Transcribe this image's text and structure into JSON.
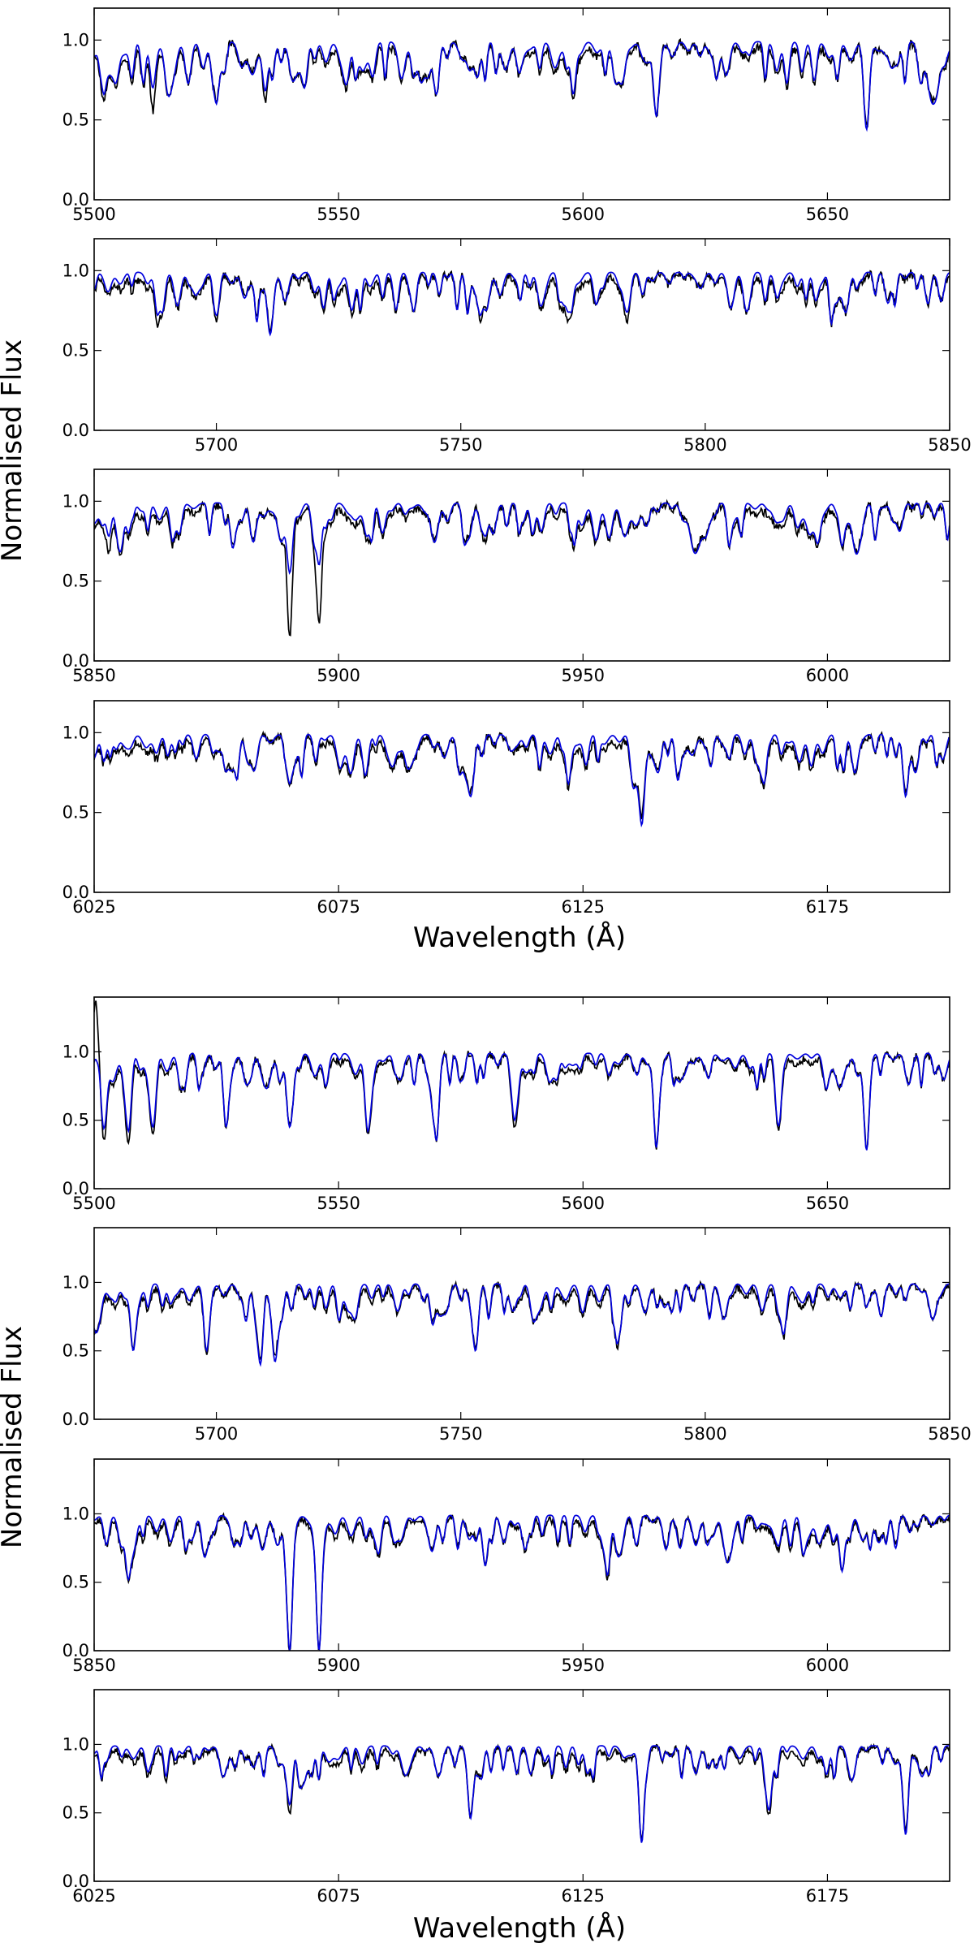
{
  "figure": {
    "groups": [
      {
        "ylabel": "Normalised Flux",
        "xlabel": "Wavelength (Å)",
        "ylim": [
          0,
          1.2
        ],
        "yticks": [
          "0.0",
          "0.5",
          "1.0"
        ],
        "panels": [
          {
            "xlim": [
              5500,
              5675
            ],
            "xticks": [
              "5500",
              "5550",
              "5600",
              "5650"
            ],
            "lines": [
              {
                "w": 5502,
                "obs": 0.62,
                "mod": 0.66
              },
              {
                "w": 5512,
                "obs": 0.56,
                "mod": 0.7
              },
              {
                "w": 5525,
                "obs": 0.62,
                "mod": 0.6
              },
              {
                "w": 5535,
                "obs": 0.62,
                "mod": 0.68
              },
              {
                "w": 5543,
                "obs": 0.7,
                "mod": 0.7
              },
              {
                "w": 5570,
                "obs": 0.66,
                "mod": 0.66
              },
              {
                "w": 5598,
                "obs": 0.62,
                "mod": 0.66
              },
              {
                "w": 5615,
                "obs": 0.52,
                "mod": 0.52
              },
              {
                "w": 5658,
                "obs": 0.45,
                "mod": 0.44
              }
            ]
          },
          {
            "xlim": [
              5675,
              5850
            ],
            "xticks": [
              "5700",
              "5750",
              "5800",
              "5850"
            ],
            "lines": [
              {
                "w": 5688,
                "obs": 0.66,
                "mod": 0.72
              },
              {
                "w": 5700,
                "obs": 0.68,
                "mod": 0.72
              },
              {
                "w": 5711,
                "obs": 0.62,
                "mod": 0.6
              },
              {
                "w": 5754,
                "obs": 0.7,
                "mod": 0.72
              },
              {
                "w": 5772,
                "obs": 0.7,
                "mod": 0.74
              },
              {
                "w": 5784,
                "obs": 0.68,
                "mod": 0.74
              }
            ]
          },
          {
            "xlim": [
              5850,
              6025
            ],
            "xticks": [
              "5850",
              "5900",
              "5950",
              "6000"
            ],
            "lines": [
              {
                "w": 5853,
                "obs": 0.68,
                "mod": 0.78
              },
              {
                "w": 5857,
                "obs": 0.78,
                "mod": 0.8
              },
              {
                "w": 5890,
                "obs": 0.16,
                "mod": 0.55
              },
              {
                "w": 5896,
                "obs": 0.22,
                "mod": 0.6
              },
              {
                "w": 5930,
                "obs": 0.74,
                "mod": 0.78
              },
              {
                "w": 6003,
                "obs": 0.7,
                "mod": 0.72
              }
            ]
          },
          {
            "xlim": [
              6025,
              6200
            ],
            "xticks": [
              "6025",
              "6075",
              "6125",
              "6175"
            ],
            "lines": [
              {
                "w": 6027,
                "obs": 0.8,
                "mod": 0.82
              },
              {
                "w": 6065,
                "obs": 0.66,
                "mod": 0.68
              },
              {
                "w": 6102,
                "obs": 0.62,
                "mod": 0.6
              },
              {
                "w": 6122,
                "obs": 0.66,
                "mod": 0.68
              },
              {
                "w": 6137,
                "obs": 0.48,
                "mod": 0.42
              },
              {
                "w": 6162,
                "obs": 0.66,
                "mod": 0.68
              },
              {
                "w": 6191,
                "obs": 0.62,
                "mod": 0.6
              }
            ]
          }
        ]
      },
      {
        "ylabel": "Normalised Flux",
        "xlabel": "Wavelength (Å)",
        "ylim": [
          0,
          1.4
        ],
        "yticks": [
          "0.0",
          "0.5",
          "1.0"
        ],
        "panels": [
          {
            "xlim": [
              5500,
              5675
            ],
            "xticks": [
              "5500",
              "5550",
              "5600",
              "5650"
            ],
            "lines": [
              {
                "w": 5500.3,
                "obs": 1.38,
                "mod": 0.95
              },
              {
                "w": 5502,
                "obs": 0.36,
                "mod": 0.44
              },
              {
                "w": 5507,
                "obs": 0.34,
                "mod": 0.42
              },
              {
                "w": 5512,
                "obs": 0.4,
                "mod": 0.45
              },
              {
                "w": 5527,
                "obs": 0.44,
                "mod": 0.45
              },
              {
                "w": 5540,
                "obs": 0.46,
                "mod": 0.45
              },
              {
                "w": 5556,
                "obs": 0.4,
                "mod": 0.42
              },
              {
                "w": 5570,
                "obs": 0.34,
                "mod": 0.35
              },
              {
                "w": 5586,
                "obs": 0.44,
                "mod": 0.5
              },
              {
                "w": 5615,
                "obs": 0.3,
                "mod": 0.3
              },
              {
                "w": 5640,
                "obs": 0.44,
                "mod": 0.46
              },
              {
                "w": 5658,
                "obs": 0.3,
                "mod": 0.28
              }
            ]
          },
          {
            "xlim": [
              5675,
              5850
            ],
            "xticks": [
              "5700",
              "5750",
              "5800",
              "5850"
            ],
            "lines": [
              {
                "w": 5683,
                "obs": 0.52,
                "mod": 0.5
              },
              {
                "w": 5698,
                "obs": 0.48,
                "mod": 0.5
              },
              {
                "w": 5709,
                "obs": 0.44,
                "mod": 0.4
              },
              {
                "w": 5712,
                "obs": 0.46,
                "mod": 0.42
              },
              {
                "w": 5753,
                "obs": 0.52,
                "mod": 0.5
              },
              {
                "w": 5782,
                "obs": 0.52,
                "mod": 0.55
              },
              {
                "w": 5816,
                "obs": 0.6,
                "mod": 0.62
              }
            ]
          },
          {
            "xlim": [
              5850,
              6025
            ],
            "xticks": [
              "5850",
              "5900",
              "5950",
              "6000"
            ],
            "lines": [
              {
                "w": 5857,
                "obs": 0.5,
                "mod": 0.52
              },
              {
                "w": 5890,
                "obs": 0.0,
                "mod": 0.0
              },
              {
                "w": 5896,
                "obs": 0.0,
                "mod": 0.0
              },
              {
                "w": 5930,
                "obs": 0.62,
                "mod": 0.62
              },
              {
                "w": 5955,
                "obs": 0.52,
                "mod": 0.55
              },
              {
                "w": 6003,
                "obs": 0.58,
                "mod": 0.58
              }
            ]
          },
          {
            "xlim": [
              6025,
              6200
            ],
            "xticks": [
              "6025",
              "6075",
              "6125",
              "6175"
            ],
            "lines": [
              {
                "w": 6065,
                "obs": 0.5,
                "mod": 0.56
              },
              {
                "w": 6102,
                "obs": 0.46,
                "mod": 0.46
              },
              {
                "w": 6137,
                "obs": 0.3,
                "mod": 0.28
              },
              {
                "w": 6163,
                "obs": 0.48,
                "mod": 0.52
              },
              {
                "w": 6191,
                "obs": 0.36,
                "mod": 0.34
              }
            ]
          }
        ]
      }
    ]
  },
  "chart_data": [
    {
      "type": "line",
      "xlabel": "",
      "ylabel": "",
      "xlim": [
        5500,
        5675
      ],
      "ylim": [
        0,
        1.2
      ],
      "grid": false,
      "series": [
        {
          "color": "#000000"
        },
        {
          "color": "#0000dd"
        }
      ]
    },
    {
      "type": "line",
      "xlabel": "",
      "ylabel": "",
      "xlim": [
        5675,
        5850
      ],
      "ylim": [
        0,
        1.2
      ],
      "grid": false,
      "series": [
        {
          "color": "#000000"
        },
        {
          "color": "#0000dd"
        }
      ]
    },
    {
      "type": "line",
      "xlabel": "",
      "ylabel": "",
      "xlim": [
        5850,
        6025
      ],
      "ylim": [
        0,
        1.2
      ],
      "grid": false,
      "series": [
        {
          "color": "#000000"
        },
        {
          "color": "#0000dd"
        }
      ]
    },
    {
      "type": "line",
      "xlabel": "Wavelength (Å)",
      "ylabel": "Normalised Flux",
      "xlim": [
        6025,
        6200
      ],
      "ylim": [
        0,
        1.2
      ],
      "grid": false,
      "series": [
        {
          "color": "#000000"
        },
        {
          "color": "#0000dd"
        }
      ]
    },
    {
      "type": "line",
      "xlabel": "",
      "ylabel": "",
      "xlim": [
        5500,
        5675
      ],
      "ylim": [
        0,
        1.4
      ],
      "grid": false,
      "series": [
        {
          "color": "#000000"
        },
        {
          "color": "#0000dd"
        }
      ]
    },
    {
      "type": "line",
      "xlabel": "",
      "ylabel": "",
      "xlim": [
        5675,
        5850
      ],
      "ylim": [
        0,
        1.4
      ],
      "grid": false,
      "series": [
        {
          "color": "#000000"
        },
        {
          "color": "#0000dd"
        }
      ]
    },
    {
      "type": "line",
      "xlabel": "",
      "ylabel": "",
      "xlim": [
        5850,
        6025
      ],
      "ylim": [
        0,
        1.4
      ],
      "grid": false,
      "series": [
        {
          "color": "#000000"
        },
        {
          "color": "#0000dd"
        }
      ]
    },
    {
      "type": "line",
      "xlabel": "Wavelength (Å)",
      "ylabel": "Normalised Flux",
      "xlim": [
        6025,
        6200
      ],
      "ylim": [
        0,
        1.4
      ],
      "grid": false,
      "series": [
        {
          "color": "#000000"
        },
        {
          "color": "#0000dd"
        }
      ]
    }
  ]
}
